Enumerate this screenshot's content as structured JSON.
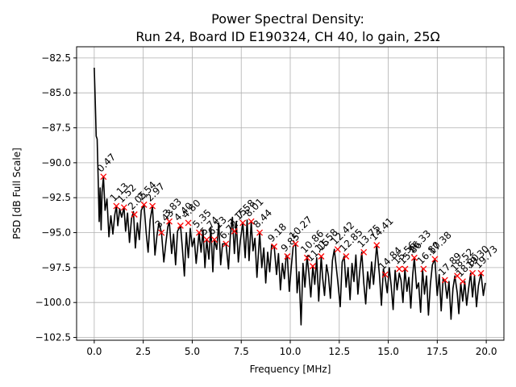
{
  "chart_data": {
    "type": "line",
    "title_line1": "Power Spectral Density:",
    "title_line2": "Run 24, Board ID E190324, CH 40, lo gain, 25Ω",
    "xlabel": "Frequency [MHz]",
    "ylabel": "PSD [dB Full Scale]",
    "xlim": [
      -0.9,
      20.9
    ],
    "ylim": [
      -102.7,
      -81.7
    ],
    "xticks": [
      0.0,
      2.5,
      5.0,
      7.5,
      10.0,
      12.5,
      15.0,
      17.5,
      20.0
    ],
    "xtick_labels": [
      "0.0",
      "2.5",
      "5.0",
      "7.5",
      "10.0",
      "12.5",
      "15.0",
      "17.5",
      "20.0"
    ],
    "yticks": [
      -82.5,
      -85.0,
      -87.5,
      -90.0,
      -92.5,
      -95.0,
      -97.5,
      -100.0,
      -102.5
    ],
    "ytick_labels": [
      "−82.5",
      "−85.0",
      "−87.5",
      "−90.0",
      "−92.5",
      "−95.0",
      "−97.5",
      "−100.0",
      "−102.5"
    ],
    "grid": true,
    "line_color": "#000000",
    "marker_color": "#ff0000",
    "series": [
      {
        "x": [
          0.0,
          0.05,
          0.1,
          0.15,
          0.2,
          0.25,
          0.3,
          0.35,
          0.4,
          0.47,
          0.55,
          0.65,
          0.75,
          0.85,
          0.95,
          1.05,
          1.13,
          1.2,
          1.3,
          1.4,
          1.52,
          1.6,
          1.7,
          1.8,
          1.9,
          2.0,
          2.1,
          2.2,
          2.3,
          2.4,
          2.54,
          2.65,
          2.75,
          2.85,
          2.97,
          3.1,
          3.2,
          3.3,
          3.43,
          3.55,
          3.65,
          3.75,
          3.83,
          3.95,
          4.05,
          4.15,
          4.25,
          4.4,
          4.5,
          4.6,
          4.7,
          4.8,
          4.9,
          5.0,
          5.1,
          5.2,
          5.35,
          5.45,
          5.55,
          5.65,
          5.74,
          5.85,
          5.95,
          6.05,
          6.13,
          6.25,
          6.35,
          6.45,
          6.55,
          6.72,
          6.85,
          6.95,
          7.05,
          7.15,
          7.25,
          7.35,
          7.45,
          7.58,
          7.7,
          7.8,
          7.9,
          8.01,
          8.1,
          8.2,
          8.3,
          8.44,
          8.55,
          8.65,
          8.75,
          8.85,
          8.95,
          9.05,
          9.18,
          9.3,
          9.4,
          9.5,
          9.6,
          9.7,
          9.8,
          9.85,
          9.95,
          10.05,
          10.15,
          10.27,
          10.35,
          10.45,
          10.55,
          10.65,
          10.75,
          10.86,
          10.95,
          11.05,
          11.15,
          11.25,
          11.35,
          11.45,
          11.58,
          11.65,
          11.75,
          11.85,
          11.95,
          12.05,
          12.15,
          12.25,
          12.42,
          12.55,
          12.65,
          12.75,
          12.85,
          12.95,
          13.05,
          13.15,
          13.25,
          13.35,
          13.45,
          13.55,
          13.65,
          13.75,
          13.85,
          13.95,
          14.05,
          14.15,
          14.25,
          14.41,
          14.55,
          14.65,
          14.75,
          14.84,
          14.95,
          15.05,
          15.15,
          15.25,
          15.35,
          15.45,
          15.56,
          15.65,
          15.75,
          15.85,
          15.95,
          16.05,
          16.15,
          16.25,
          16.33,
          16.45,
          16.55,
          16.65,
          16.75,
          16.85,
          16.95,
          17.05,
          17.15,
          17.25,
          17.38,
          17.5,
          17.6,
          17.7,
          17.8,
          17.89,
          18.0,
          18.1,
          18.2,
          18.3,
          18.4,
          18.52,
          18.6,
          18.7,
          18.8,
          18.9,
          19.0,
          19.1,
          19.2,
          19.3,
          19.4,
          19.5,
          19.6,
          19.73,
          19.85,
          19.95
        ],
        "y": [
          -83.2,
          -85.5,
          -88.1,
          -88.3,
          -91.0,
          -94.2,
          -91.8,
          -94.8,
          -92.1,
          -91.0,
          -93.4,
          -92.6,
          -95.3,
          -93.8,
          -95.1,
          -93.7,
          -93.1,
          -94.5,
          -93.3,
          -93.9,
          -93.2,
          -94.9,
          -93.6,
          -95.7,
          -94.0,
          -93.5,
          -96.1,
          -94.3,
          -95.5,
          -93.4,
          -93.0,
          -95.0,
          -96.4,
          -94.1,
          -93.1,
          -96.6,
          -95.2,
          -94.3,
          -95.0,
          -97.1,
          -95.8,
          -94.6,
          -94.2,
          -96.5,
          -95.1,
          -97.3,
          -94.9,
          -94.5,
          -96.2,
          -98.1,
          -95.0,
          -96.8,
          -94.7,
          -96.0,
          -95.4,
          -97.2,
          -95.0,
          -96.4,
          -94.8,
          -97.5,
          -95.5,
          -96.9,
          -94.6,
          -97.8,
          -95.5,
          -96.2,
          -94.3,
          -97.3,
          -95.8,
          -95.8,
          -97.6,
          -95.1,
          -93.9,
          -96.5,
          -94.2,
          -97.1,
          -95.6,
          -94.3,
          -96.8,
          -94.1,
          -97.0,
          -94.2,
          -96.3,
          -95.4,
          -98.2,
          -95.0,
          -97.5,
          -96.1,
          -98.6,
          -96.4,
          -97.8,
          -95.9,
          -96.0,
          -98.0,
          -96.5,
          -99.1,
          -97.2,
          -98.3,
          -96.6,
          -96.7,
          -99.2,
          -97.5,
          -96.0,
          -95.8,
          -99.3,
          -97.8,
          -101.6,
          -97.2,
          -98.9,
          -96.7,
          -97.9,
          -99.6,
          -97.4,
          -98.7,
          -96.8,
          -99.9,
          -96.7,
          -98.2,
          -99.5,
          -97.3,
          -98.1,
          -99.7,
          -97.0,
          -96.2,
          -98.4,
          -100.3,
          -97.1,
          -96.7,
          -98.9,
          -97.5,
          -99.8,
          -97.2,
          -98.5,
          -96.6,
          -99.4,
          -97.7,
          -96.4,
          -98.6,
          -100.1,
          -97.8,
          -99.0,
          -97.1,
          -98.7,
          -95.9,
          -98.0,
          -100.2,
          -97.6,
          -98.2,
          -99.3,
          -97.5,
          -98.8,
          -100.5,
          -97.7,
          -99.1,
          -97.9,
          -98.4,
          -100.0,
          -97.6,
          -99.2,
          -98.2,
          -100.4,
          -98.0,
          -96.8,
          -99.0,
          -98.6,
          -100.7,
          -97.6,
          -99.4,
          -98.1,
          -100.9,
          -98.7,
          -97.3,
          -96.9,
          -99.5,
          -98.0,
          -100.6,
          -98.3,
          -98.4,
          -99.7,
          -98.5,
          -101.2,
          -99.0,
          -98.1,
          -99.3,
          -100.8,
          -98.6,
          -99.9,
          -98.5,
          -100.2,
          -99.0,
          -97.9,
          -99.6,
          -98.1,
          -100.3,
          -98.8,
          -97.9,
          -99.5,
          -98.6
        ]
      }
    ],
    "peaks": [
      {
        "x": 0.47,
        "y": -91.0,
        "label": "0.47"
      },
      {
        "x": 1.13,
        "y": -93.1,
        "label": "1.13"
      },
      {
        "x": 1.52,
        "y": -93.2,
        "label": "1.52"
      },
      {
        "x": 2.05,
        "y": -93.7,
        "label": "2.05"
      },
      {
        "x": 2.54,
        "y": -93.0,
        "label": "2.54"
      },
      {
        "x": 2.97,
        "y": -93.1,
        "label": "2.97"
      },
      {
        "x": 3.43,
        "y": -95.0,
        "label": "3.43"
      },
      {
        "x": 3.83,
        "y": -94.2,
        "label": "3.83"
      },
      {
        "x": 4.4,
        "y": -94.5,
        "label": "4.40"
      },
      {
        "x": 4.8,
        "y": -94.3,
        "label": "4.80"
      },
      {
        "x": 5.35,
        "y": -95.0,
        "label": "5.35"
      },
      {
        "x": 5.74,
        "y": -95.5,
        "label": "5.74"
      },
      {
        "x": 6.13,
        "y": -95.5,
        "label": "6.13"
      },
      {
        "x": 6.72,
        "y": -95.8,
        "label": "6.72"
      },
      {
        "x": 7.15,
        "y": -94.9,
        "label": "7.15"
      },
      {
        "x": 7.58,
        "y": -94.3,
        "label": "7.58"
      },
      {
        "x": 8.01,
        "y": -94.2,
        "label": "8.01"
      },
      {
        "x": 8.44,
        "y": -95.0,
        "label": "8.44"
      },
      {
        "x": 9.18,
        "y": -96.0,
        "label": "9.18"
      },
      {
        "x": 9.85,
        "y": -96.7,
        "label": "9.85"
      },
      {
        "x": 10.27,
        "y": -95.8,
        "label": "10.27"
      },
      {
        "x": 10.86,
        "y": -96.8,
        "label": "10.86"
      },
      {
        "x": 11.15,
        "y": -97.4,
        "label": "11.15"
      },
      {
        "x": 11.58,
        "y": -96.7,
        "label": "11.58"
      },
      {
        "x": 12.42,
        "y": -96.2,
        "label": "12.42"
      },
      {
        "x": 12.85,
        "y": -96.7,
        "label": "12.85"
      },
      {
        "x": 13.75,
        "y": -96.4,
        "label": "13.75"
      },
      {
        "x": 14.41,
        "y": -95.9,
        "label": "14.41"
      },
      {
        "x": 14.84,
        "y": -98.0,
        "label": "14.84"
      },
      {
        "x": 15.56,
        "y": -97.6,
        "label": "15.56"
      },
      {
        "x": 15.86,
        "y": -97.6,
        "label": "15.86"
      },
      {
        "x": 16.33,
        "y": -96.8,
        "label": "16.33"
      },
      {
        "x": 16.8,
        "y": -97.6,
        "label": "16.80"
      },
      {
        "x": 17.38,
        "y": -96.9,
        "label": "17.38"
      },
      {
        "x": 17.89,
        "y": -98.4,
        "label": "17.89"
      },
      {
        "x": 18.52,
        "y": -98.1,
        "label": "18.52"
      },
      {
        "x": 18.8,
        "y": -98.5,
        "label": "18.80"
      },
      {
        "x": 19.3,
        "y": -97.9,
        "label": "19.30"
      },
      {
        "x": 19.73,
        "y": -97.9,
        "label": "19.73"
      }
    ]
  }
}
